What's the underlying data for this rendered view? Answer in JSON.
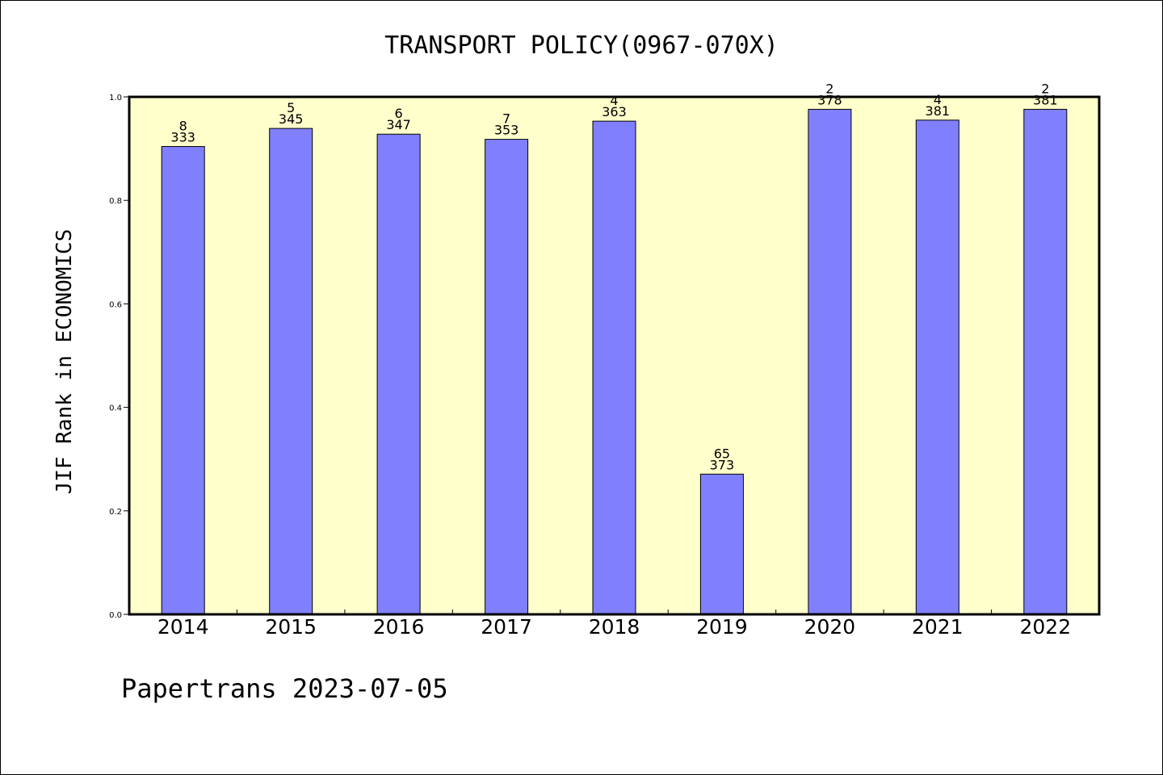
{
  "chart_data": {
    "type": "bar",
    "title": "TRANSPORT POLICY(0967-070X)",
    "xlabel": "",
    "ylabel": "JIF Rank in ECONOMICS",
    "ylim": [
      0,
      1.0
    ],
    "yticks": [
      "0.0",
      "0.2",
      "0.4",
      "0.6",
      "0.8",
      "1.0"
    ],
    "categories": [
      "2014",
      "2015",
      "2016",
      "2017",
      "2018",
      "2019",
      "2020",
      "2021",
      "2022"
    ],
    "values": [
      0.904,
      0.939,
      0.928,
      0.918,
      0.953,
      0.271,
      0.976,
      0.955,
      0.976
    ],
    "rank_labels": [
      "8",
      "5",
      "6",
      "7",
      "4",
      "65",
      "2",
      "4",
      "2"
    ],
    "total_labels": [
      "333",
      "345",
      "347",
      "353",
      "363",
      "373",
      "378",
      "381",
      "381"
    ],
    "grid": false,
    "colors": {
      "plot_background": "#ffffcc",
      "bar_fill": "#8080ff",
      "bar_stroke": "#000000"
    }
  },
  "footer": {
    "text": "Papertrans 2023-07-05"
  }
}
